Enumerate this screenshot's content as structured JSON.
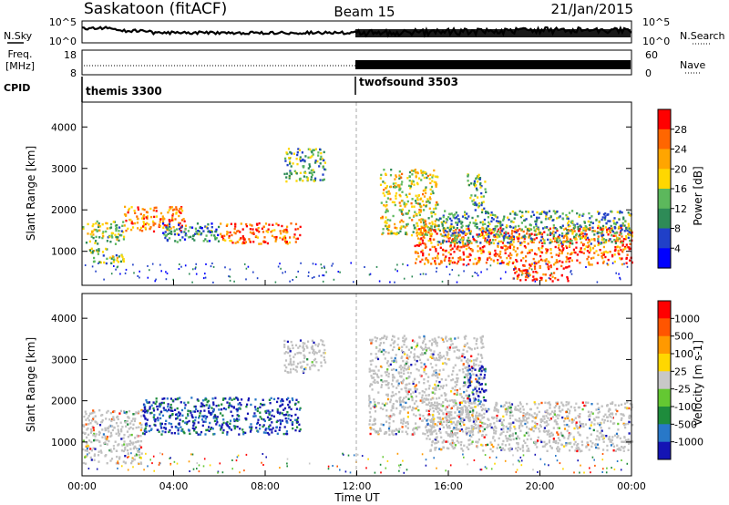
{
  "header": {
    "station": "Saskatoon (fitACF)",
    "beam": "Beam 15",
    "date": "21/Jan/2015"
  },
  "noise_panel": {
    "left_label": "N.Sky",
    "right_label": "N.Search",
    "left_ticks": [
      "10^5",
      "10^0"
    ],
    "right_ticks": [
      "10^5",
      "10^0"
    ]
  },
  "freq_panel": {
    "left_label_1": "Freq.",
    "left_label_2": "[MHz]",
    "left_ticks": [
      "18",
      "8"
    ],
    "right_label": "Nave",
    "right_ticks": [
      "60",
      "0"
    ]
  },
  "cpid": {
    "label": "CPID",
    "segments": [
      {
        "name": "themis 3300",
        "start_hour": 0
      },
      {
        "name": "twofsound 3503",
        "start_hour": 12
      }
    ]
  },
  "colors": {
    "power_scale": [
      "#0000ff",
      "#2040c8",
      "#2e8b57",
      "#5cb85c",
      "#ffd700",
      "#ffa500",
      "#ff6600",
      "#ff0000"
    ],
    "velocity_scale": [
      "#1414b4",
      "#2878c8",
      "#1e8c3c",
      "#64c832",
      "#c8c8c8",
      "#ffd700",
      "#ff9900",
      "#ff5500",
      "#ff0000"
    ],
    "ground_scatter": "#c0c0c0"
  },
  "chart_data": [
    {
      "type": "heatmap",
      "title": "Power",
      "ylabel": "Slant Range [km]",
      "xlabel": "",
      "xlim_hours": [
        0,
        24
      ],
      "ylim": [
        180,
        4600
      ],
      "yticks": [
        1000,
        2000,
        3000,
        4000
      ],
      "colorbar_label": "Power [dB]",
      "colorbar_ticks": [
        "28",
        "24",
        "20",
        "16",
        "12",
        "8",
        "4"
      ],
      "features": [
        {
          "t0": 0.0,
          "t1": 1.8,
          "r0": 1200,
          "r1": 1750,
          "level": 0.45
        },
        {
          "t0": 0.3,
          "t1": 1.8,
          "r0": 700,
          "r1": 1100,
          "level": 0.45
        },
        {
          "t0": 1.8,
          "t1": 4.5,
          "r0": 1500,
          "r1": 2100,
          "level": 0.75
        },
        {
          "t0": 3.5,
          "t1": 6.0,
          "r0": 1250,
          "r1": 1700,
          "level": 0.3
        },
        {
          "t0": 6.0,
          "t1": 9.5,
          "r0": 1200,
          "r1": 1700,
          "level": 0.8
        },
        {
          "t0": 8.8,
          "t1": 10.6,
          "r0": 2700,
          "r1": 3500,
          "level": 0.4
        },
        {
          "t0": 13.0,
          "t1": 15.5,
          "r0": 1400,
          "r1": 3000,
          "level": 0.55
        },
        {
          "t0": 14.5,
          "t1": 24.0,
          "r0": 700,
          "r1": 1600,
          "level": 0.8
        },
        {
          "t0": 15.5,
          "t1": 24.0,
          "r0": 1200,
          "r1": 2000,
          "level": 0.35
        },
        {
          "t0": 18.8,
          "t1": 21.3,
          "r0": 300,
          "r1": 700,
          "level": 0.9
        },
        {
          "t0": 16.8,
          "t1": 17.6,
          "r0": 2000,
          "r1": 2900,
          "level": 0.4
        }
      ]
    },
    {
      "type": "heatmap",
      "title": "Velocity",
      "ylabel": "Slant Range [km]",
      "xlabel": "Time UT",
      "xlim_hours": [
        0,
        24
      ],
      "ylim": [
        180,
        4600
      ],
      "yticks": [
        1000,
        2000,
        3000,
        4000
      ],
      "xticks": [
        "00:00",
        "04:00",
        "08:00",
        "12:00",
        "16:00",
        "20:00",
        "00:00"
      ],
      "colorbar_label": "Velocity [m s-1]",
      "colorbar_ticks": [
        "1000",
        "500",
        "100",
        "25",
        "-25",
        "-100",
        "-500",
        "-1000"
      ],
      "features": [
        {
          "t0": 0.0,
          "t1": 2.6,
          "r0": 500,
          "r1": 1800,
          "level": 0.5
        },
        {
          "t0": 2.6,
          "t1": 9.5,
          "r0": 1200,
          "r1": 2100,
          "level": 0.1
        },
        {
          "t0": 8.8,
          "t1": 10.6,
          "r0": 2700,
          "r1": 3500,
          "level": 0.5
        },
        {
          "t0": 12.5,
          "t1": 17.5,
          "r0": 1200,
          "r1": 3600,
          "level": 0.5
        },
        {
          "t0": 15.0,
          "t1": 24.0,
          "r0": 800,
          "r1": 2000,
          "level": 0.5
        },
        {
          "t0": 16.8,
          "t1": 17.6,
          "r0": 2000,
          "r1": 2900,
          "level": 0.05
        }
      ]
    }
  ],
  "xaxis": {
    "label": "Time UT",
    "ticks": [
      "00:00",
      "04:00",
      "08:00",
      "12:00",
      "16:00",
      "20:00",
      "00:00"
    ]
  }
}
